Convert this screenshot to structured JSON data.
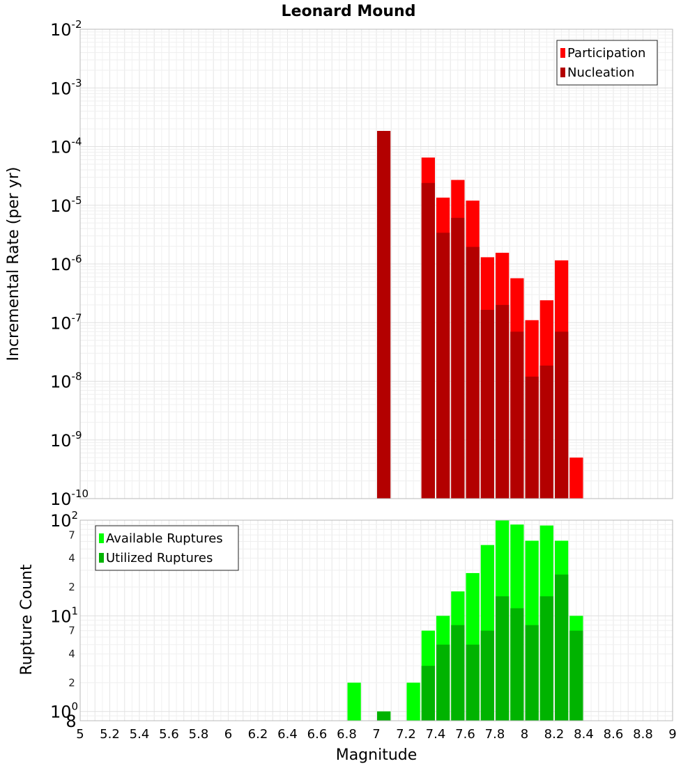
{
  "chart_data": [
    {
      "type": "bar",
      "title": "Leonard Mound",
      "ylabel": "Incremental Rate (per yr)",
      "xlabel": "",
      "xlim": [
        5,
        9
      ],
      "ylim": [
        1e-10,
        0.01
      ],
      "yscale": "log",
      "bin_width": 0.1,
      "y_ticks": [
        {
          "base": "10",
          "exp": "-10",
          "value": 1e-10
        },
        {
          "base": "10",
          "exp": "-9",
          "value": 1e-09
        },
        {
          "base": "10",
          "exp": "-8",
          "value": 1e-08
        },
        {
          "base": "10",
          "exp": "-7",
          "value": 1e-07
        },
        {
          "base": "10",
          "exp": "-6",
          "value": 1e-06
        },
        {
          "base": "10",
          "exp": "-5",
          "value": 1e-05
        },
        {
          "base": "10",
          "exp": "-4",
          "value": 0.0001
        },
        {
          "base": "10",
          "exp": "-3",
          "value": 0.001
        },
        {
          "base": "10",
          "exp": "-2",
          "value": 0.01
        }
      ],
      "legend_position": "top-right",
      "series": [
        {
          "name": "Participation",
          "color": "#ff0000",
          "points": [
            [
              7.35,
              6.5e-05
            ],
            [
              7.45,
              1.35e-05
            ],
            [
              7.55,
              2.7e-05
            ],
            [
              7.65,
              1.2e-05
            ],
            [
              7.75,
              1.3e-06
            ],
            [
              7.85,
              1.55e-06
            ],
            [
              7.95,
              5.7e-07
            ],
            [
              8.05,
              1.1e-07
            ],
            [
              8.15,
              2.4e-07
            ],
            [
              8.25,
              1.15e-06
            ],
            [
              8.35,
              5e-10
            ]
          ]
        },
        {
          "name": "Nucleation",
          "color": "#b30000",
          "points": [
            [
              7.05,
              0.000185
            ],
            [
              7.35,
              2.4e-05
            ],
            [
              7.45,
              3.4e-06
            ],
            [
              7.55,
              6.1e-06
            ],
            [
              7.65,
              1.95e-06
            ],
            [
              7.75,
              1.65e-07
            ],
            [
              7.85,
              2e-07
            ],
            [
              7.95,
              7e-08
            ],
            [
              8.05,
              1.2e-08
            ],
            [
              8.15,
              1.85e-08
            ],
            [
              8.25,
              7e-08
            ]
          ]
        }
      ]
    },
    {
      "type": "bar",
      "title": "",
      "ylabel": "Rupture Count",
      "xlabel": "Magnitude",
      "xlim": [
        5,
        9
      ],
      "ylim": [
        0.8,
        100
      ],
      "yscale": "log",
      "bin_width": 0.1,
      "x_ticks": [
        "5",
        "5.2",
        "5.4",
        "5.6",
        "5.8",
        "6",
        "6.2",
        "6.4",
        "6.6",
        "6.8",
        "7",
        "7.2",
        "7.4",
        "7.6",
        "7.8",
        "8",
        "8.2",
        "8.4",
        "8.6",
        "8.8",
        "9"
      ],
      "y_major_ticks": [
        {
          "base": "10",
          "exp": "0",
          "value": 1
        },
        {
          "base": "10",
          "exp": "1",
          "value": 10
        },
        {
          "base": "10",
          "exp": "2",
          "value": 100
        }
      ],
      "y_minor_ticks": [
        {
          "label": "8",
          "value": 0.8
        },
        {
          "label": "2",
          "value": 2
        },
        {
          "label": "4",
          "value": 4
        },
        {
          "label": "7",
          "value": 7
        },
        {
          "label": "2",
          "value": 20
        },
        {
          "label": "4",
          "value": 40
        },
        {
          "label": "7",
          "value": 70
        }
      ],
      "legend_position": "top-left",
      "series": [
        {
          "name": "Available Ruptures",
          "color": "#00ff00",
          "points": [
            [
              6.85,
              2
            ],
            [
              7.05,
              1
            ],
            [
              7.25,
              2
            ],
            [
              7.35,
              7
            ],
            [
              7.45,
              10
            ],
            [
              7.55,
              18
            ],
            [
              7.65,
              28
            ],
            [
              7.75,
              55
            ],
            [
              7.85,
              100
            ],
            [
              7.95,
              90
            ],
            [
              8.05,
              61
            ],
            [
              8.15,
              88
            ],
            [
              8.25,
              61
            ],
            [
              8.35,
              10
            ]
          ]
        },
        {
          "name": "Utilized Ruptures",
          "color": "#00b300",
          "points": [
            [
              7.05,
              1
            ],
            [
              7.35,
              3
            ],
            [
              7.45,
              5
            ],
            [
              7.55,
              8
            ],
            [
              7.65,
              5
            ],
            [
              7.75,
              7
            ],
            [
              7.85,
              16
            ],
            [
              7.95,
              12
            ],
            [
              8.05,
              8
            ],
            [
              8.15,
              16
            ],
            [
              8.25,
              27
            ],
            [
              8.35,
              7
            ]
          ]
        }
      ]
    }
  ]
}
